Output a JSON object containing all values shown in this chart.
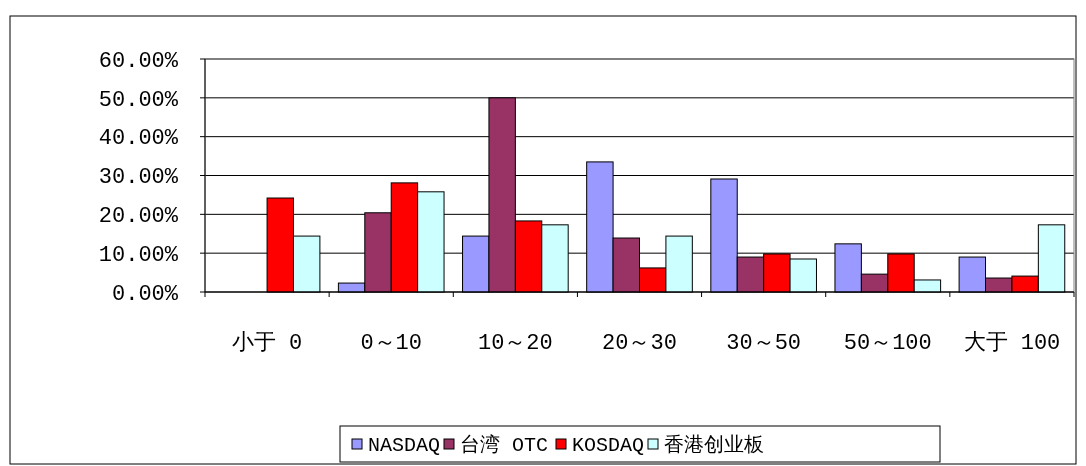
{
  "chart_data": {
    "type": "bar",
    "categories": [
      "小于 0",
      "0～10",
      "10～20",
      "20～30",
      "30～50",
      "50～100",
      "大于 100"
    ],
    "series": [
      {
        "name": "NASDAQ",
        "color": "#9999ff",
        "values": [
          0,
          2.3,
          14.4,
          33.5,
          29.1,
          12.4,
          9.0
        ]
      },
      {
        "name": "台湾 OTC",
        "color": "#993366",
        "values": [
          0,
          20.4,
          50.0,
          13.9,
          9.0,
          4.6,
          3.6
        ]
      },
      {
        "name": "KOSDAQ",
        "color": "#ff0000",
        "values": [
          24.2,
          28.1,
          18.3,
          6.2,
          9.8,
          9.8,
          4.1
        ]
      },
      {
        "name": "香港创业板",
        "color": "#ccffff",
        "values": [
          14.4,
          25.8,
          17.3,
          14.4,
          8.5,
          3.1,
          17.3
        ]
      }
    ],
    "ylim": [
      0,
      60
    ],
    "yticks": [
      {
        "value": 0,
        "label": "0.00%"
      },
      {
        "value": 10,
        "label": "10.00%"
      },
      {
        "value": 20,
        "label": "20.00%"
      },
      {
        "value": 30,
        "label": "30.00%"
      },
      {
        "value": 40,
        "label": "40.00%"
      },
      {
        "value": 50,
        "label": "50.00%"
      },
      {
        "value": 60,
        "label": "60.00%"
      }
    ],
    "grid": "y",
    "legend": "bottom"
  }
}
